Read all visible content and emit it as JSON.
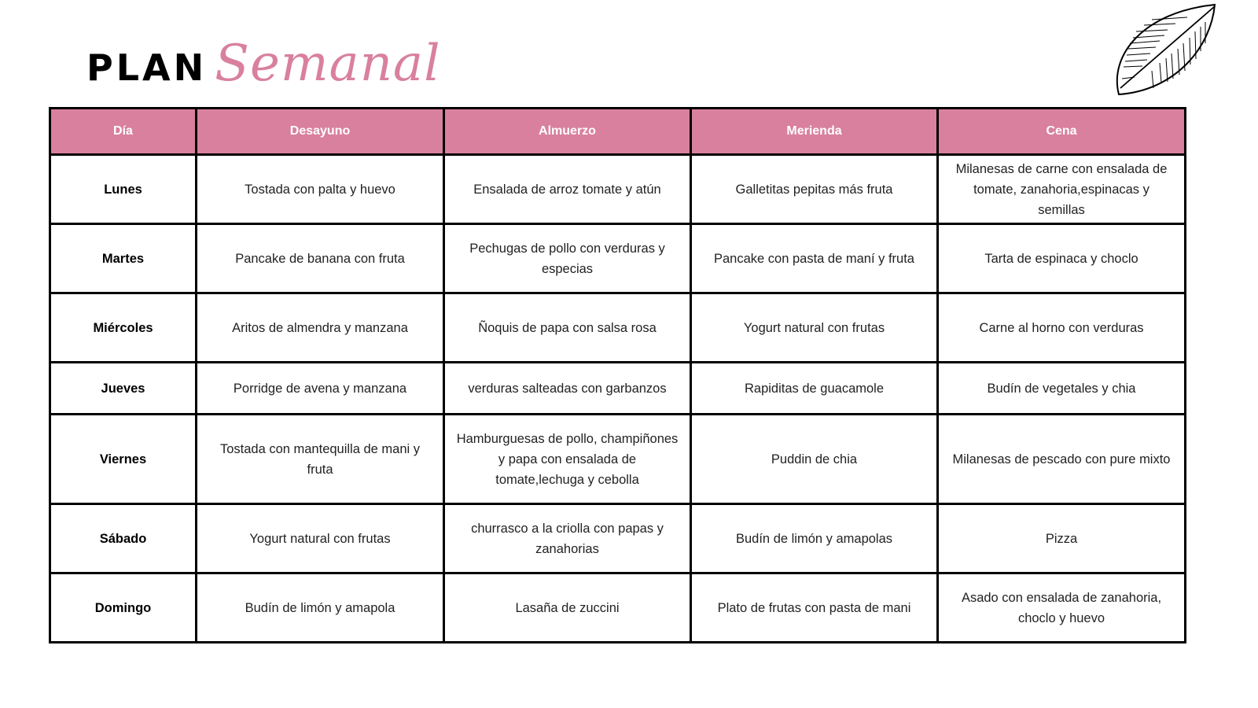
{
  "title": {
    "plan": "PLAN",
    "semanal": "Semanal"
  },
  "colors": {
    "accent": "#d9809e"
  },
  "table": {
    "headers": [
      "Día",
      "Desayuno",
      "Almuerzo",
      "Merienda",
      "Cena"
    ],
    "rows": [
      [
        "Lunes",
        "Tostada con palta y huevo",
        "Ensalada de arroz tomate y atún",
        "Galletitas pepitas más fruta",
        "Milanesas de carne con ensalada de tomate, zanahoria,espinacas y semillas"
      ],
      [
        "Martes",
        "Pancake de banana con fruta",
        "Pechugas de pollo con verduras y especias",
        "Pancake con pasta de maní y fruta",
        "Tarta de espinaca y choclo"
      ],
      [
        "Miércoles",
        "Aritos de almendra y manzana",
        "Ñoquis de papa con salsa rosa",
        "Yogurt natural con frutas",
        "Carne al horno con verduras"
      ],
      [
        "Jueves",
        "Porridge de avena y manzana",
        "verduras salteadas con garbanzos",
        "Rapiditas de guacamole",
        "Budín de vegetales y chia"
      ],
      [
        "Viernes",
        "Tostada con mantequilla de mani  y fruta",
        "Hamburguesas de pollo, champiñones y papa con ensalada de tomate,lechuga y cebolla",
        "Puddin de chia",
        "Milanesas de pescado con pure mixto"
      ],
      [
        "Sábado",
        "Yogurt natural con frutas",
        "churrasco a la criolla con papas y zanahorias",
        "Budín de limón  y amapolas",
        "Pizza"
      ],
      [
        "Domingo",
        "Budín  de limón y amapola",
        "Lasaña de zuccini",
        "Plato de frutas con pasta de mani",
        "Asado con ensalada de zanahoria, choclo y huevo"
      ]
    ]
  }
}
